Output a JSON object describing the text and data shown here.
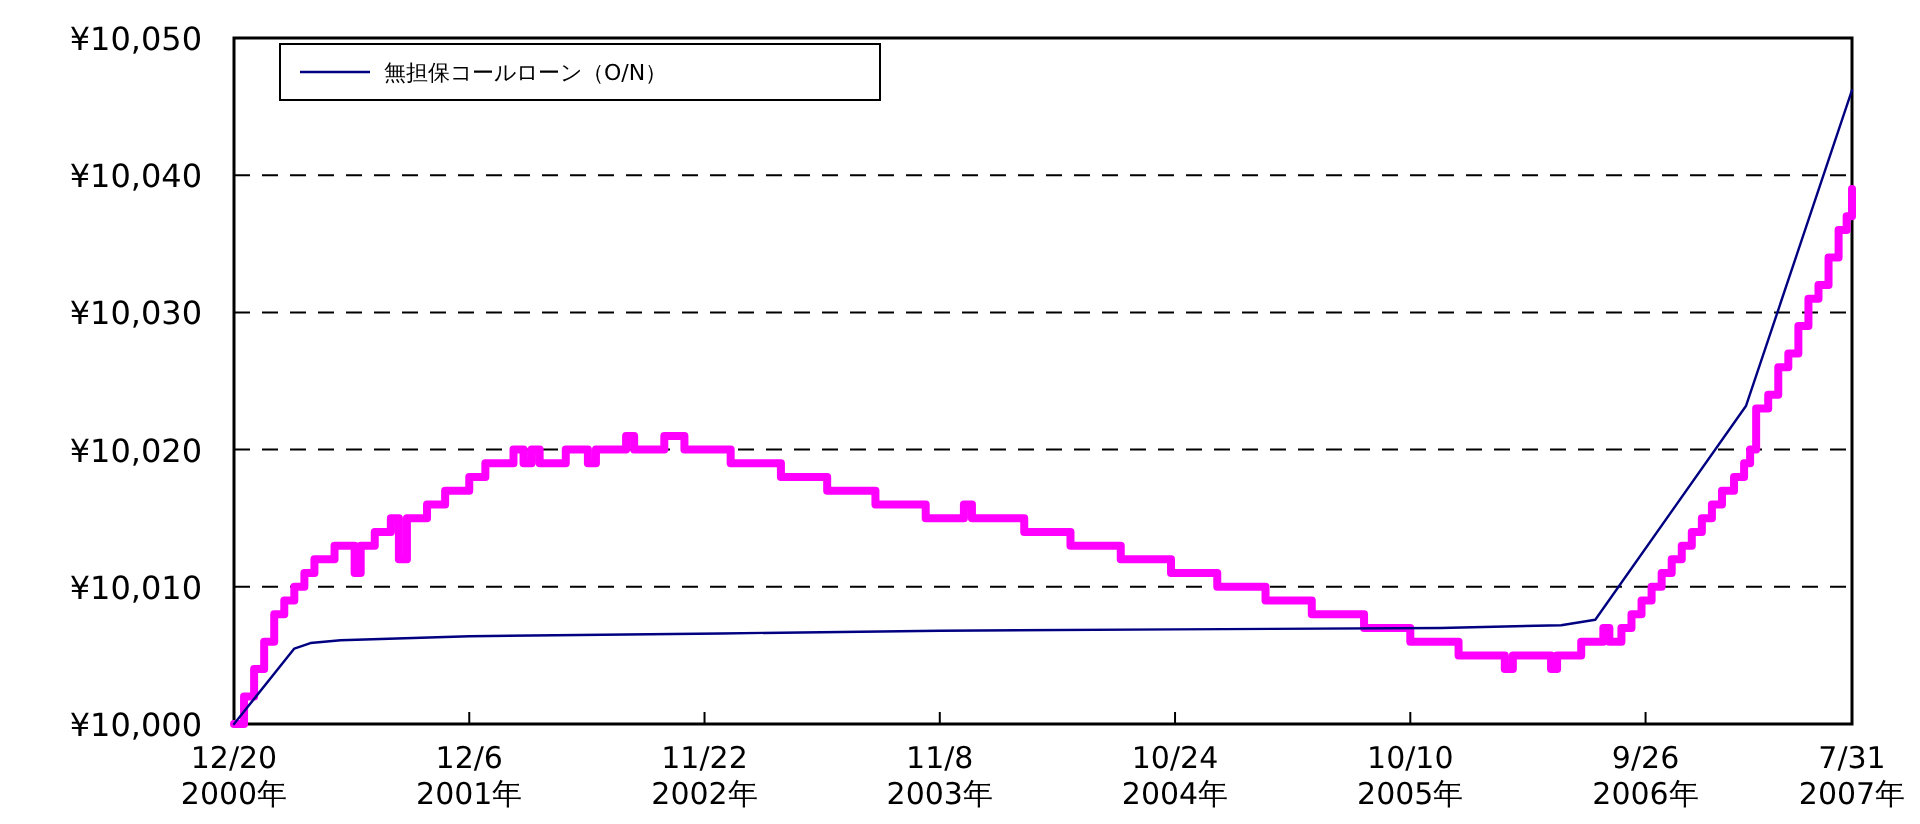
{
  "chart_data": {
    "type": "line",
    "legend": "top left",
    "grid": "y",
    "marker": "none",
    "line_style": "solid",
    "xlim": [
      "2000-12-20",
      "2007-07-31"
    ],
    "xticks": [
      {
        "value": "2000-12-20",
        "label": "12/20\n2000年"
      },
      {
        "value": "2001-12-06",
        "label": "12/6\n2001年"
      },
      {
        "value": "2002-11-22",
        "label": "11/22\n2002年"
      },
      {
        "value": "2003-11-08",
        "label": "11/8\n2003年"
      },
      {
        "value": "2004-10-24",
        "label": "10/24\n2004年"
      },
      {
        "value": "2005-10-10",
        "label": "10/10\n2005年"
      },
      {
        "value": "2006-09-26",
        "label": "9/26\n2006年"
      },
      {
        "value": "2007-07-31",
        "label": "7/31\n2007年"
      }
    ],
    "ylim": [
      10000,
      10050
    ],
    "yticks": [
      {
        "value": 10000,
        "label": "¥10,000"
      },
      {
        "value": 10010,
        "label": "¥10,010"
      },
      {
        "value": 10020,
        "label": "¥10,020"
      },
      {
        "value": 10030,
        "label": "¥10,030"
      },
      {
        "value": 10040,
        "label": "¥10,040"
      },
      {
        "value": 10050,
        "label": "¥10,050"
      }
    ],
    "series": [
      {
        "type": "step",
        "color": "#ff00ff",
        "x": [
          "2000-12-20",
          "2001-01-04",
          "2001-01-19",
          "2001-02-03",
          "2001-02-18",
          "2001-03-05",
          "2001-03-20",
          "2001-04-04",
          "2001-04-19",
          "2001-05-19",
          "2001-06-18",
          "2001-06-27",
          "2001-07-18",
          "2001-08-11",
          "2001-08-23",
          "2001-09-04",
          "2001-10-04",
          "2001-10-31",
          "2001-12-06",
          "2001-12-30",
          "2002-02-10",
          "2002-02-25",
          "2002-03-09",
          "2002-03-21",
          "2002-04-29",
          "2002-06-01",
          "2002-06-13",
          "2002-07-28",
          "2002-08-09",
          "2002-09-23",
          "2002-10-23",
          "2002-12-31",
          "2003-03-16",
          "2003-05-24",
          "2003-08-04",
          "2003-10-18",
          "2003-12-14",
          "2003-12-26",
          "2004-03-13",
          "2004-05-21",
          "2004-08-04",
          "2004-10-18",
          "2004-12-26",
          "2005-03-08",
          "2005-05-16",
          "2005-08-02",
          "2005-10-10",
          "2005-12-21",
          "2006-02-28",
          "2006-03-12",
          "2006-05-08",
          "2006-05-17",
          "2006-06-22",
          "2006-07-25",
          "2006-08-03",
          "2006-08-21",
          "2006-09-05",
          "2006-09-20",
          "2006-10-05",
          "2006-10-20",
          "2006-11-04",
          "2006-11-19",
          "2006-12-04",
          "2006-12-19",
          "2007-01-03",
          "2007-01-18",
          "2007-02-05",
          "2007-02-20",
          "2007-03-01",
          "2007-03-10",
          "2007-03-28",
          "2007-04-12",
          "2007-04-27",
          "2007-05-12",
          "2007-05-27",
          "2007-06-11",
          "2007-06-26",
          "2007-07-11",
          "2007-07-23",
          "2007-07-31"
        ],
        "values": [
          10000,
          10002,
          10004,
          10006,
          10008,
          10009,
          10010,
          10011,
          10012,
          10013,
          10011,
          10013,
          10014,
          10015,
          10012,
          10015,
          10016,
          10017,
          10018,
          10019,
          10020,
          10019,
          10020,
          10019,
          10020,
          10019,
          10020,
          10021,
          10020,
          10021,
          10020,
          10019,
          10018,
          10017,
          10016,
          10015,
          10016,
          10015,
          10014,
          10013,
          10012,
          10011,
          10010,
          10009,
          10008,
          10007,
          10006,
          10005,
          10004,
          10005,
          10004,
          10005,
          10006,
          10007,
          10006,
          10007,
          10008,
          10009,
          10010,
          10011,
          10012,
          10013,
          10014,
          10015,
          10016,
          10017,
          10018,
          10019,
          10020,
          10023,
          10024,
          10026,
          10027,
          10029,
          10031,
          10032,
          10034,
          10036,
          10037,
          10039
        ]
      },
      {
        "name": "無担保コールローン（O/N）",
        "color": "#000080",
        "x": [
          "2000-12-20",
          "2001-03-20",
          "2001-04-13",
          "2001-05-28",
          "2001-12-06",
          "2002-12-16",
          "2003-11-08",
          "2004-10-24",
          "2005-11-24",
          "2006-05-23",
          "2006-07-13",
          "2007-02-23",
          "2007-07-31"
        ],
        "values": [
          10000,
          10005.5,
          10005.9,
          10006.1,
          10006.4,
          10006.6,
          10006.8,
          10006.9,
          10007.0,
          10007.2,
          10007.6,
          10023.2,
          10046.2
        ]
      }
    ]
  }
}
